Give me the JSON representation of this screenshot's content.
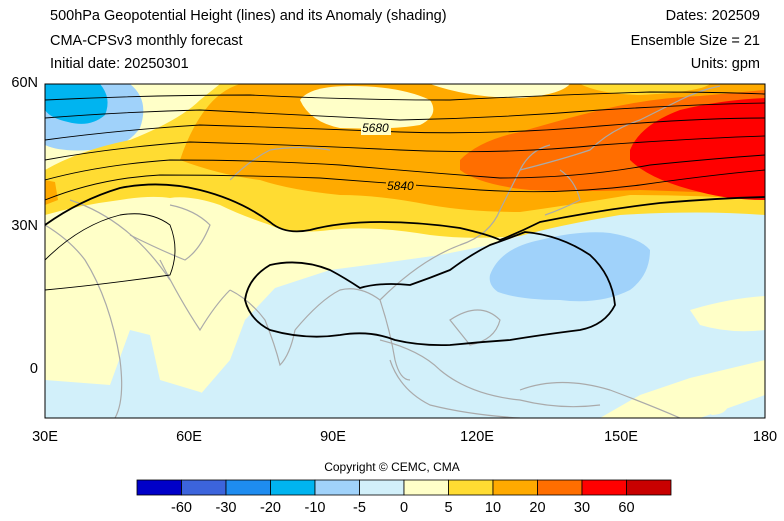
{
  "header": {
    "title": "500hPa Geopotential Height (lines) and its Anomaly (shading)",
    "model": "CMA-CPSv3 monthly forecast",
    "initial": "Initial date: 20250301",
    "dates": "Dates: 202509",
    "ensemble": "Ensemble Size = 21",
    "units": "Units: gpm"
  },
  "map": {
    "lon_labels": [
      "30E",
      "60E",
      "90E",
      "120E",
      "150E",
      "180"
    ],
    "lat_labels": [
      "60N",
      "30N",
      "0"
    ],
    "contour_labels": [
      "5680",
      "5840"
    ],
    "lon_range": [
      30,
      180
    ],
    "lat_range": [
      -10,
      60
    ]
  },
  "colorbar": {
    "labels": [
      "-60",
      "-30",
      "-20",
      "-10",
      "-5",
      "0",
      "5",
      "10",
      "20",
      "30",
      "60"
    ],
    "colors": [
      "#0000c8",
      "#3c64dc",
      "#1e8cf0",
      "#00b4f0",
      "#a0d2fa",
      "#d2f0fa",
      "#ffffc8",
      "#ffdc32",
      "#ffaa00",
      "#ff6e00",
      "#ff0000",
      "#c80000"
    ]
  },
  "copyright": "Copyright © CEMC, CMA"
}
